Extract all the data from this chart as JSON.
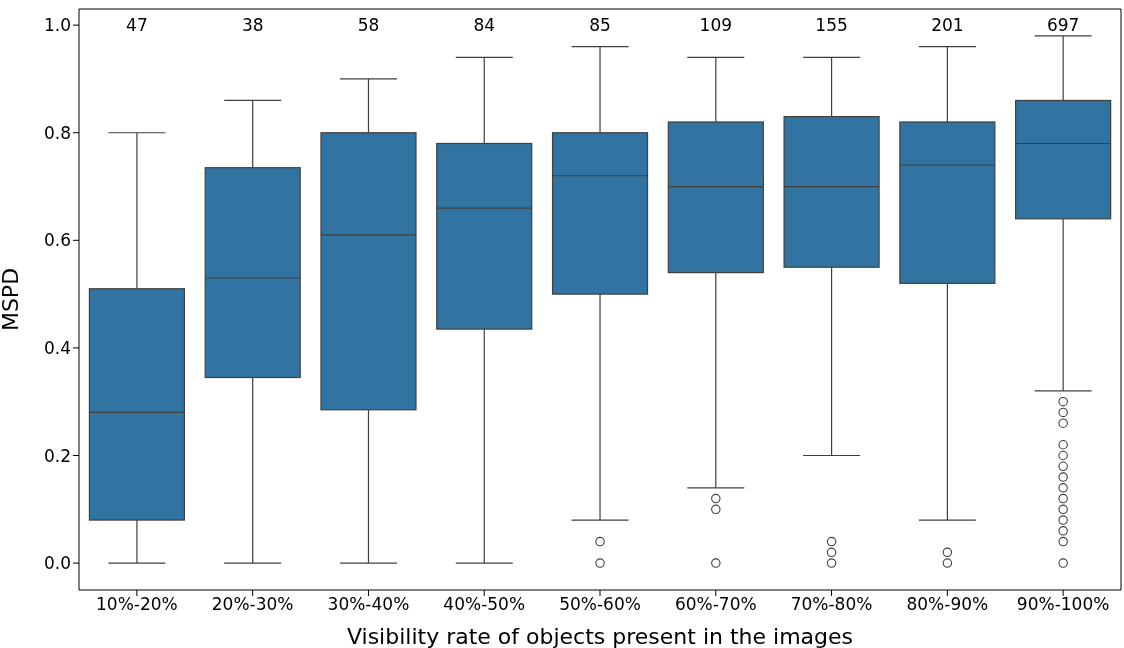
{
  "chart_data": {
    "type": "box",
    "xlabel": "Visibility rate of objects present in the images",
    "ylabel": "MSPD",
    "categories": [
      "10%-20%",
      "20%-30%",
      "30%-40%",
      "40%-50%",
      "50%-60%",
      "60%-70%",
      "70%-80%",
      "80%-90%",
      "90%-100%"
    ],
    "color": "#3274a1",
    "boxes": [
      {
        "low": 0,
        "q1": 0.08,
        "median": 0.28,
        "q3": 0.51,
        "high": 0.8
      },
      {
        "low": 0,
        "q1": 0.345,
        "median": 0.53,
        "q3": 0.735,
        "high": 0.86
      },
      {
        "low": 0,
        "q1": 0.285,
        "median": 0.61,
        "q3": 0.8,
        "high": 0.9
      },
      {
        "low": 0,
        "q1": 0.435,
        "median": 0.66,
        "q3": 0.78,
        "high": 0.94
      },
      {
        "low": 0.08,
        "q1": 0.5,
        "median": 0.72,
        "q3": 0.8,
        "high": 0.96,
        "outliers": [
          0.04,
          0
        ]
      },
      {
        "low": 0.14,
        "q1": 0.54,
        "median": 0.7,
        "q3": 0.82,
        "high": 0.94,
        "outliers": [
          0.12,
          0.1,
          0
        ]
      },
      {
        "low": 0.2,
        "q1": 0.55,
        "median": 0.7,
        "q3": 0.83,
        "high": 0.94,
        "outliers": [
          0.04,
          0.02,
          0
        ]
      },
      {
        "low": 0.08,
        "q1": 0.52,
        "median": 0.74,
        "q3": 0.82,
        "high": 0.96,
        "outliers": [
          0.02,
          0
        ]
      },
      {
        "low": 0.32,
        "q1": 0.64,
        "median": 0.78,
        "q3": 0.86,
        "high": 0.98,
        "outliers": [
          0.3,
          0.28,
          0.26,
          0.22,
          0.2,
          0.18,
          0.16,
          0.14,
          0.12,
          0.1,
          0.08,
          0.06,
          0.04,
          0
        ]
      }
    ],
    "ylim": [
      -0.05,
      1.03
    ],
    "yticks": [
      {
        "value": 0,
        "label": "0.0"
      },
      {
        "value": 0.2,
        "label": "0.2"
      },
      {
        "value": 0.4,
        "label": "0.4"
      },
      {
        "value": 0.6,
        "label": "0.6"
      },
      {
        "value": 0.8,
        "label": "0.8"
      },
      {
        "value": 1,
        "label": "1.0"
      }
    ],
    "annotations": [
      "47",
      "38",
      "58",
      "84",
      "85",
      "109",
      "155",
      "201",
      "697"
    ]
  }
}
